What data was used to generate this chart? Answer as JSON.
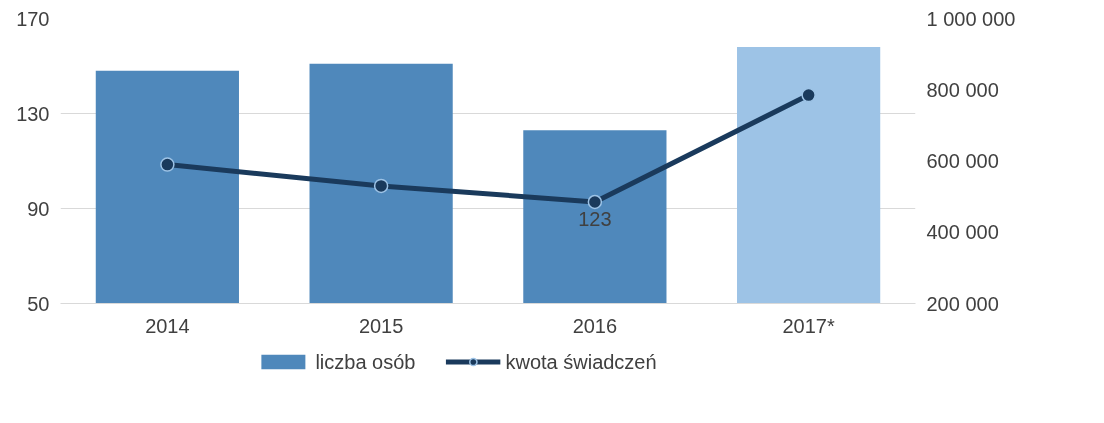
{
  "chart_data": {
    "type": "bar",
    "categories": [
      "2014",
      "2015",
      "2016",
      "2017*"
    ],
    "ylim": [
      50,
      170
    ],
    "yticks": [
      50,
      90,
      130,
      170
    ],
    "y2lim": [
      200000,
      1000000
    ],
    "y2ticks": [
      {
        "value": 200000,
        "label": "200 000"
      },
      {
        "value": 400000,
        "label": "400 000"
      },
      {
        "value": 600000,
        "label": "600 000"
      },
      {
        "value": 800000,
        "label": "800 000"
      },
      {
        "value": 1000000,
        "label": "1 000 000"
      }
    ],
    "series": [
      {
        "name": "liczba osób",
        "color": "#4f88bb",
        "colors": [
          "#4f88bb",
          "#4f88bb",
          "#4f88bb",
          "#9dc3e6"
        ],
        "values": [
          148,
          151,
          123,
          158
        ],
        "value_labels": [
          null,
          null,
          "123",
          null
        ]
      },
      {
        "name": "kwota świadczeń",
        "type": "line",
        "axis": "y2",
        "color": "#1a3a5c",
        "marker": "circle",
        "values": [
          590000,
          530000,
          485000,
          785000
        ]
      }
    ],
    "grid": "y",
    "legend": "bottom"
  }
}
